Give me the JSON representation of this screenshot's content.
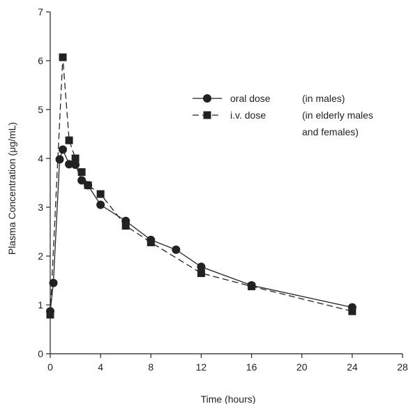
{
  "chart_data": {
    "type": "line",
    "title": "",
    "xlabel": "Time (hours)",
    "ylabel": "Plasma Concentration (μg/mL)",
    "xlim": [
      0,
      28
    ],
    "ylim": [
      0,
      7
    ],
    "xticks": [
      0,
      4,
      8,
      12,
      16,
      20,
      24,
      28
    ],
    "yticks": [
      0,
      1,
      2,
      3,
      4,
      5,
      6,
      7
    ],
    "grid": false,
    "legend_position": "top-right",
    "series": [
      {
        "name": "oral dose",
        "note": "(in males)",
        "marker": "circle",
        "line_style": "solid",
        "color": "#222222",
        "points": [
          [
            0,
            0.87
          ],
          [
            0.25,
            1.45
          ],
          [
            0.75,
            3.98
          ],
          [
            1,
            4.18
          ],
          [
            1.5,
            3.88
          ],
          [
            2,
            3.87
          ],
          [
            2.5,
            3.55
          ],
          [
            3,
            3.45
          ],
          [
            4,
            3.05
          ],
          [
            6,
            2.72
          ],
          [
            8,
            2.33
          ],
          [
            10,
            2.13
          ],
          [
            12,
            1.78
          ],
          [
            16,
            1.4
          ],
          [
            24,
            0.95
          ]
        ]
      },
      {
        "name": "i.v.  dose",
        "note": "(in elderly males and females)",
        "note_lines": [
          "(in elderly males",
          "and females)"
        ],
        "marker": "square",
        "line_style": "dashed",
        "color": "#222222",
        "points": [
          [
            0,
            0.8
          ],
          [
            1,
            6.07
          ],
          [
            1.5,
            4.37
          ],
          [
            2,
            4.0
          ],
          [
            2.5,
            3.72
          ],
          [
            3,
            3.45
          ],
          [
            4,
            3.27
          ],
          [
            6,
            2.62
          ],
          [
            8,
            2.28
          ],
          [
            12,
            1.65
          ],
          [
            16,
            1.38
          ],
          [
            24,
            0.87
          ]
        ]
      }
    ]
  }
}
